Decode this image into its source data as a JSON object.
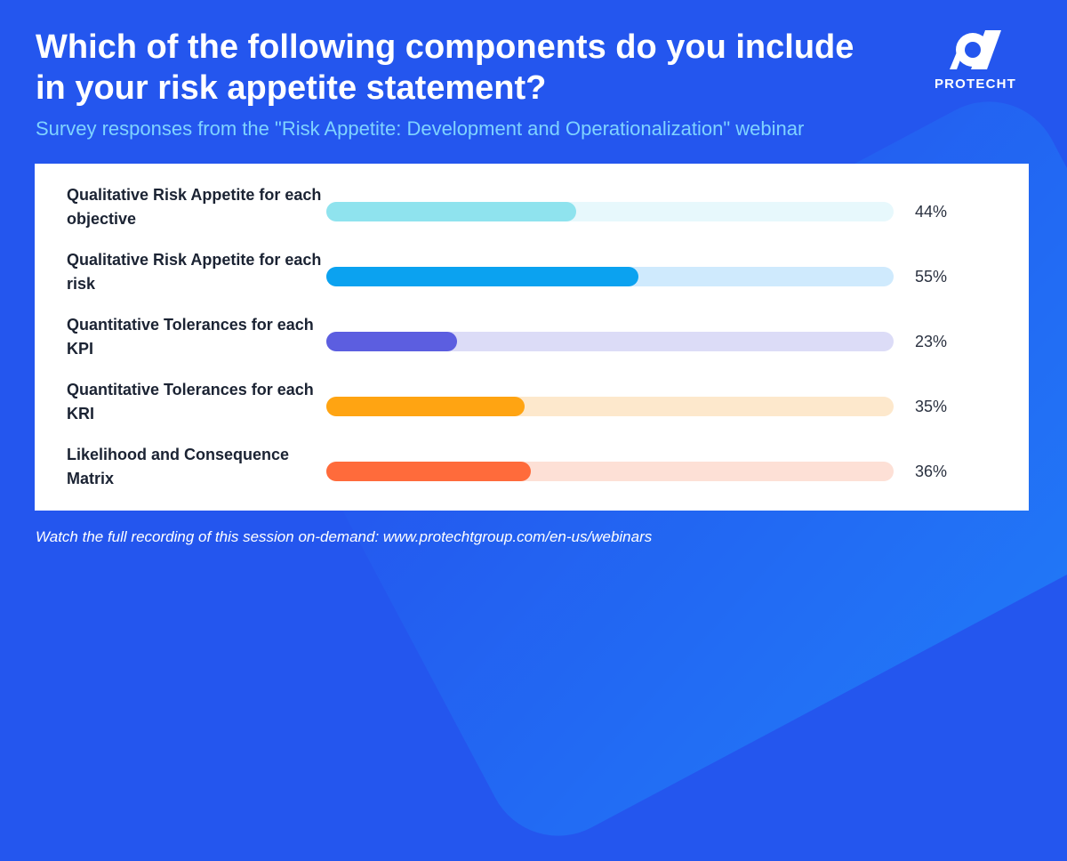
{
  "header": {
    "title": "Which of the following components do you include in your risk appetite statement?",
    "subtitle": "Survey responses from the \"Risk Appetite: Development and Operationalization\" webinar"
  },
  "brand": {
    "name": "PROTECHT",
    "logo_icon": "protecht-shield-logo-icon"
  },
  "footer": {
    "text": "Watch the full recording of this session on-demand: www.protechtgroup.com/en-us/webinars"
  },
  "chart_data": {
    "type": "bar",
    "orientation": "horizontal",
    "title": "Which of the following components do you include in your risk appetite statement?",
    "xlim": [
      0,
      100
    ],
    "grid": false,
    "categories": [
      "Qualitative Risk Appetite for each objective",
      "Qualitative Risk Appetite for each risk",
      "Quantitative Tolerances for each KPI",
      "Quantitative Tolerances for each KRI",
      "Likelihood and Consequence Matrix"
    ],
    "values": [
      44,
      55,
      23,
      35,
      36
    ],
    "value_labels": [
      "44%",
      "55%",
      "23%",
      "35%",
      "36%"
    ],
    "colors": [
      "#8fe3ee",
      "#0ba2f0",
      "#5c5ee0",
      "#ffa412",
      "#ff6b3b"
    ],
    "track_colors": [
      "#e7f8fc",
      "#cfeafd",
      "#dcdcf7",
      "#fde8cc",
      "#fde0d6"
    ]
  }
}
